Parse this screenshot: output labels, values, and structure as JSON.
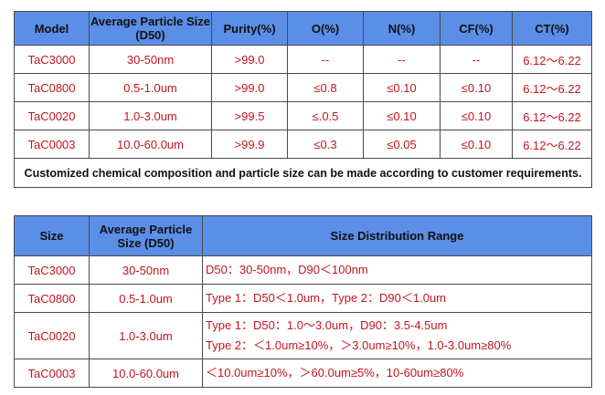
{
  "table1": {
    "headers": [
      "Model",
      "Average Particle Size (D50)",
      "Purity(%)",
      "O(%)",
      "N(%)",
      "CF(%)",
      "CT(%)"
    ],
    "rows": [
      [
        "TaC3000",
        "30-50nm",
        ">99.0",
        "--",
        "--",
        "--",
        "6.12～6.22"
      ],
      [
        "TaC0800",
        "0.5-1.0um",
        ">99.0",
        "≤0.8",
        "≤0.10",
        "≤0.10",
        "6.12～6.22"
      ],
      [
        "TaC0020",
        "1.0-3.0um",
        ">99.5",
        "≤.0.5",
        "≤0.10",
        "≤0.10",
        "6.12～6.22"
      ],
      [
        "TaC0003",
        "10.0-60.0um",
        ">99.9",
        "≤0.3",
        "≤0.05",
        "≤0.10",
        "6.12～6.22"
      ]
    ],
    "note": "Customized chemical composition and particle size can be made according to customer requirements."
  },
  "table2": {
    "headers": [
      "Size",
      "Average Particle Size (D50)",
      "Size Distribution Range"
    ],
    "rows": [
      {
        "model": "TaC3000",
        "d50": "30-50nm",
        "range": [
          "D50：30-50nm，D90＜100nm"
        ]
      },
      {
        "model": "TaC0800",
        "d50": "0.5-1.0um",
        "range": [
          "Type 1：D50＜1.0um，Type 2：D90＜1.0um"
        ]
      },
      {
        "model": "TaC0020",
        "d50": "1.0-3.0um",
        "range": [
          "Type 1：D50：1.0～3.0um，D90：3.5-4.5um",
          "Type 2：＜1.0um≥10%，＞3.0um≥10%，1.0-3.0um≥80%"
        ]
      },
      {
        "model": "TaC0003",
        "d50": "10.0-60.0um",
        "range": [
          "＜10.0um≥10%，＞60.0um≥5%，10-60um≥80%"
        ]
      }
    ]
  },
  "colors": {
    "header_bg": "#5b8ee6",
    "cell_text": "#c0161e",
    "header_text": "#111111",
    "border": "#4a4a4a"
  }
}
